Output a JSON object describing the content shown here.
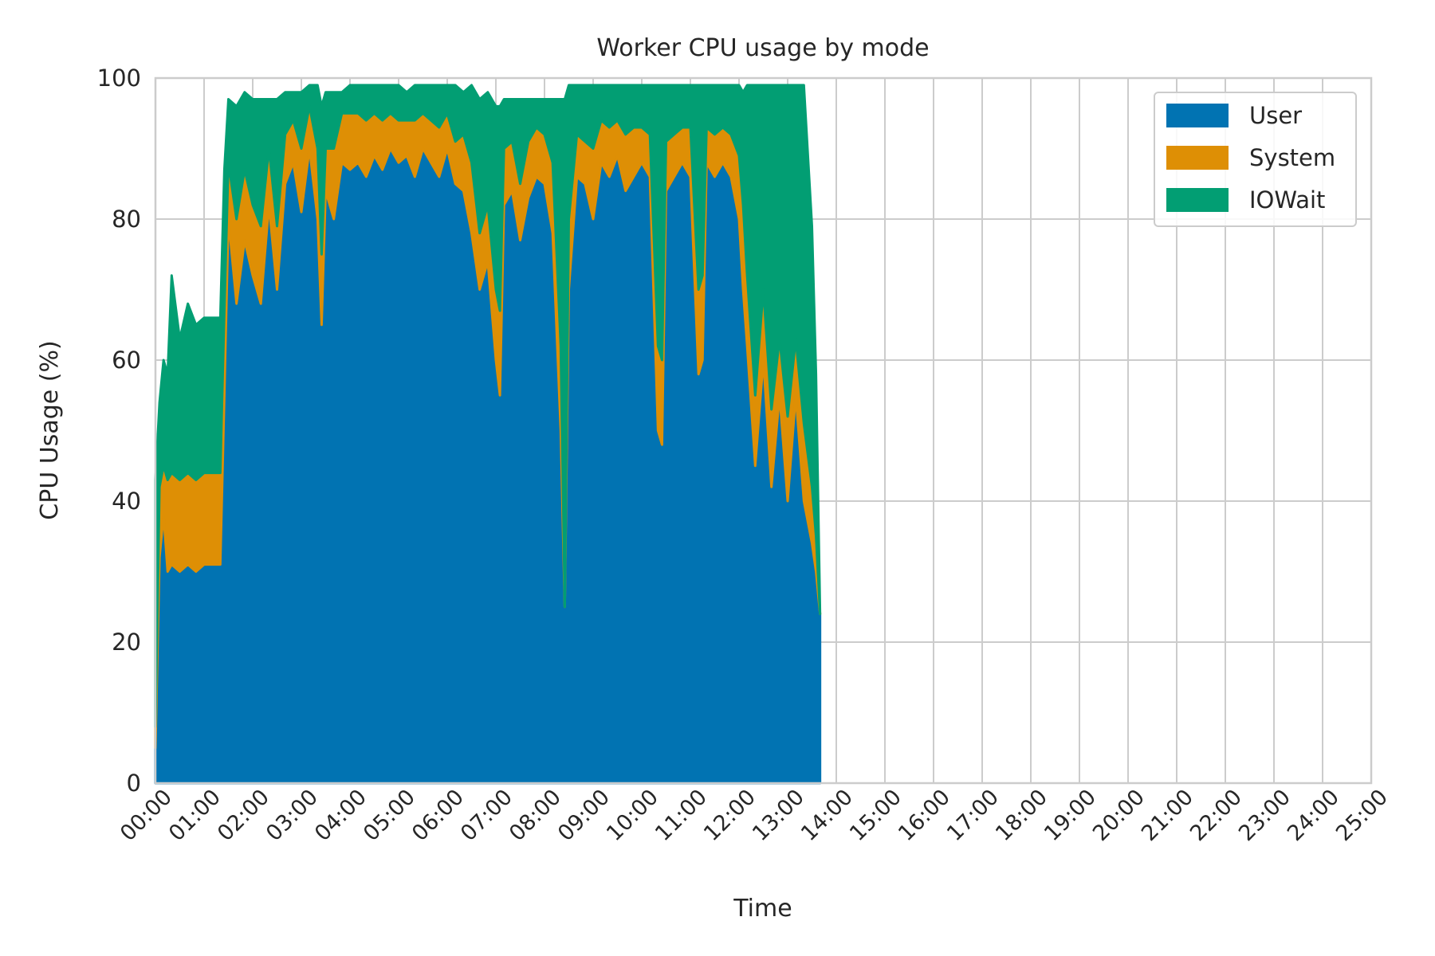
{
  "chart_data": {
    "type": "area",
    "stacked": true,
    "title": "Worker CPU usage by mode",
    "xlabel": "Time",
    "ylabel": "CPU Usage (%)",
    "xlim": [
      "00:00",
      "25:00"
    ],
    "ylim": [
      0,
      100
    ],
    "grid": true,
    "legend_position": "top-right",
    "x_ticks": [
      "00:00",
      "01:00",
      "02:00",
      "03:00",
      "04:00",
      "05:00",
      "06:00",
      "07:00",
      "08:00",
      "09:00",
      "10:00",
      "11:00",
      "12:00",
      "13:00",
      "14:00",
      "15:00",
      "16:00",
      "17:00",
      "18:00",
      "19:00",
      "20:00",
      "21:00",
      "22:00",
      "23:00",
      "24:00",
      "25:00"
    ],
    "y_ticks": [
      0,
      20,
      40,
      60,
      80,
      100
    ],
    "x": [
      "00:00",
      "00:05",
      "00:10",
      "00:15",
      "00:20",
      "00:30",
      "00:40",
      "00:50",
      "01:00",
      "01:10",
      "01:20",
      "01:25",
      "01:30",
      "01:40",
      "01:50",
      "02:00",
      "02:10",
      "02:20",
      "02:30",
      "02:40",
      "02:50",
      "03:00",
      "03:10",
      "03:20",
      "03:25",
      "03:30",
      "03:40",
      "03:50",
      "04:00",
      "04:10",
      "04:20",
      "04:30",
      "04:40",
      "04:50",
      "05:00",
      "05:10",
      "05:20",
      "05:30",
      "05:40",
      "05:50",
      "06:00",
      "06:10",
      "06:20",
      "06:30",
      "06:40",
      "06:50",
      "07:00",
      "07:05",
      "07:10",
      "07:20",
      "07:30",
      "07:40",
      "07:50",
      "08:00",
      "08:10",
      "08:20",
      "08:25",
      "08:30",
      "08:40",
      "08:50",
      "09:00",
      "09:10",
      "09:20",
      "09:30",
      "09:40",
      "09:50",
      "10:00",
      "10:10",
      "10:20",
      "10:25",
      "10:30",
      "10:40",
      "10:50",
      "11:00",
      "11:10",
      "11:15",
      "11:20",
      "11:30",
      "11:40",
      "11:50",
      "12:00",
      "12:05",
      "12:10",
      "12:20",
      "12:30",
      "12:40",
      "12:50",
      "13:00",
      "13:10",
      "13:20",
      "13:30",
      "13:35",
      "13:40"
    ],
    "series": [
      {
        "name": "User",
        "color": "#0173b2",
        "values": [
          5,
          32,
          38,
          30,
          31,
          30,
          31,
          30,
          31,
          31,
          31,
          55,
          80,
          68,
          77,
          72,
          68,
          82,
          70,
          85,
          88,
          81,
          90,
          80,
          65,
          84,
          80,
          88,
          87,
          88,
          86,
          89,
          87,
          90,
          88,
          89,
          86,
          90,
          88,
          86,
          90,
          85,
          84,
          78,
          70,
          74,
          60,
          55,
          82,
          84,
          77,
          83,
          86,
          85,
          78,
          50,
          25,
          70,
          86,
          85,
          80,
          88,
          86,
          89,
          84,
          86,
          88,
          86,
          50,
          48,
          84,
          86,
          88,
          86,
          58,
          60,
          88,
          86,
          88,
          86,
          80,
          70,
          62,
          45,
          60,
          42,
          55,
          40,
          55,
          40,
          34,
          30,
          24
        ]
      },
      {
        "name": "System",
        "color": "#de8f05",
        "values": [
          3,
          10,
          7,
          13,
          13,
          13,
          13,
          13,
          13,
          13,
          13,
          12,
          8,
          12,
          10,
          10,
          11,
          8,
          9,
          7,
          6,
          9,
          6,
          10,
          10,
          6,
          10,
          7,
          8,
          7,
          8,
          6,
          7,
          5,
          6,
          5,
          8,
          5,
          6,
          7,
          5,
          6,
          8,
          10,
          8,
          8,
          10,
          12,
          8,
          7,
          8,
          8,
          7,
          7,
          10,
          12,
          0,
          10,
          6,
          6,
          10,
          6,
          7,
          5,
          8,
          7,
          5,
          6,
          12,
          12,
          7,
          6,
          5,
          7,
          12,
          12,
          5,
          6,
          5,
          6,
          9,
          12,
          10,
          10,
          10,
          11,
          8,
          12,
          8,
          11,
          8,
          5,
          0
        ]
      },
      {
        "name": "IOWait",
        "color": "#029e73",
        "values": [
          35,
          12,
          15,
          15,
          28,
          20,
          24,
          22,
          22,
          22,
          22,
          20,
          9,
          16,
          11,
          15,
          18,
          7,
          18,
          6,
          4,
          8,
          3,
          9,
          21,
          8,
          8,
          3,
          4,
          4,
          5,
          4,
          5,
          4,
          5,
          4,
          5,
          4,
          5,
          6,
          4,
          8,
          6,
          11,
          19,
          16,
          26,
          29,
          7,
          6,
          12,
          6,
          4,
          5,
          9,
          35,
          72,
          19,
          7,
          8,
          9,
          5,
          6,
          5,
          7,
          6,
          6,
          7,
          37,
          39,
          8,
          7,
          6,
          6,
          29,
          27,
          6,
          7,
          6,
          7,
          10,
          16,
          27,
          44,
          29,
          46,
          36,
          47,
          36,
          48,
          37,
          23,
          0
        ]
      }
    ]
  }
}
